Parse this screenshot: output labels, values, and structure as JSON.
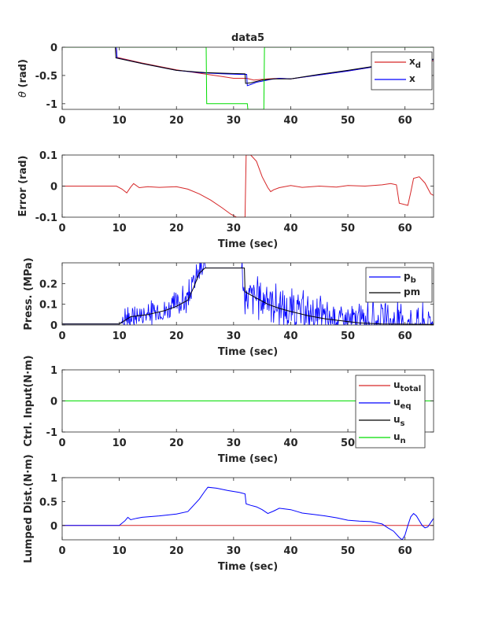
{
  "figure_title": "data5",
  "chart_data": [
    {
      "type": "line",
      "title": "data5",
      "xlabel": "",
      "ylabel": "θ (rad)",
      "xlim": [
        0,
        65
      ],
      "ylim": [
        -1.1,
        0
      ],
      "xticks": [
        "0",
        "10",
        "20",
        "30",
        "40",
        "50",
        "60"
      ],
      "yticks": [
        "0",
        "-0.5",
        "-1"
      ],
      "legend": {
        "placement": "top-right",
        "entries": [
          {
            "main": "x",
            "sub": "d",
            "color": "#d62728"
          },
          {
            "main": "x",
            "sub": "",
            "color": "#0000ff"
          }
        ]
      },
      "series": [
        {
          "name": "x_d",
          "color": "#d62728",
          "points": [
            [
              0,
              0
            ],
            [
              9.5,
              0
            ],
            [
              9.6,
              -0.18
            ],
            [
              14,
              -0.28
            ],
            [
              20,
              -0.4
            ],
            [
              24,
              -0.46
            ],
            [
              28,
              -0.52
            ],
            [
              30,
              -0.55
            ],
            [
              32.3,
              -0.55
            ],
            [
              33.5,
              -0.58
            ],
            [
              36,
              -0.56
            ],
            [
              38,
              -0.55
            ],
            [
              40,
              -0.56
            ],
            [
              45,
              -0.49
            ],
            [
              50,
              -0.42
            ],
            [
              55,
              -0.34
            ],
            [
              60,
              -0.27
            ],
            [
              65,
              -0.24
            ]
          ]
        },
        {
          "name": "x",
          "color": "#0000ff",
          "points": [
            [
              0,
              0
            ],
            [
              9.5,
              0
            ],
            [
              9.6,
              -0.19
            ],
            [
              14,
              -0.29
            ],
            [
              20,
              -0.41
            ],
            [
              24,
              -0.45
            ],
            [
              28,
              -0.47
            ],
            [
              31,
              -0.48
            ],
            [
              32.3,
              -0.48
            ],
            [
              32.4,
              -0.68
            ],
            [
              33,
              -0.66
            ],
            [
              34,
              -0.62
            ],
            [
              35,
              -0.6
            ],
            [
              36.5,
              -0.57
            ],
            [
              38,
              -0.55
            ],
            [
              40,
              -0.56
            ],
            [
              45,
              -0.49
            ],
            [
              50,
              -0.42
            ],
            [
              55,
              -0.34
            ],
            [
              60,
              -0.28
            ],
            [
              65,
              -0.22
            ]
          ]
        },
        {
          "name": "",
          "color": "#000000",
          "points": [
            [
              0,
              0
            ],
            [
              9.3,
              0
            ],
            [
              9.4,
              -0.19
            ],
            [
              14,
              -0.29
            ],
            [
              20,
              -0.41
            ],
            [
              25,
              -0.45
            ],
            [
              28,
              -0.46
            ],
            [
              32,
              -0.47
            ],
            [
              32.1,
              -0.64
            ],
            [
              33,
              -0.63
            ],
            [
              35,
              -0.58
            ],
            [
              37,
              -0.56
            ],
            [
              40,
              -0.56
            ],
            [
              45,
              -0.48
            ],
            [
              50,
              -0.41
            ],
            [
              55,
              -0.33
            ],
            [
              60,
              -0.27
            ],
            [
              65,
              -0.21
            ]
          ]
        },
        {
          "name": "",
          "color": "#00dd00",
          "points": [
            [
              0,
              0
            ],
            [
              25.2,
              0
            ],
            [
              25.3,
              -1.0
            ],
            [
              32.4,
              -1.0
            ],
            [
              32.5,
              -1.1
            ],
            [
              35.3,
              -1.1
            ],
            [
              35.4,
              0
            ],
            [
              65,
              0
            ]
          ]
        }
      ]
    },
    {
      "type": "line",
      "title": "",
      "xlabel": "Time (sec)",
      "ylabel": "Error (rad)",
      "xlim": [
        0,
        65
      ],
      "ylim": [
        -0.1,
        0.1
      ],
      "xticks": [
        "0",
        "10",
        "20",
        "30",
        "40",
        "50",
        "60"
      ],
      "yticks": [
        "0.1",
        "0",
        "-0.1"
      ],
      "series": [
        {
          "name": "",
          "color": "#d62728",
          "points": [
            [
              0,
              0
            ],
            [
              9.5,
              0
            ],
            [
              10.5,
              -0.01
            ],
            [
              11.3,
              -0.022
            ],
            [
              12,
              -0.003
            ],
            [
              12.5,
              0.008
            ],
            [
              13.5,
              -0.005
            ],
            [
              15,
              -0.002
            ],
            [
              17,
              -0.004
            ],
            [
              20,
              -0.002
            ],
            [
              22,
              -0.01
            ],
            [
              24,
              -0.025
            ],
            [
              26,
              -0.045
            ],
            [
              28,
              -0.07
            ],
            [
              29.5,
              -0.09
            ],
            [
              30.5,
              -0.1
            ],
            [
              31.5,
              -0.1
            ],
            [
              32,
              -0.1
            ],
            [
              32.2,
              0.1
            ],
            [
              33,
              0.1
            ],
            [
              34,
              0.08
            ],
            [
              35,
              0.03
            ],
            [
              36,
              -0.005
            ],
            [
              36.5,
              -0.018
            ],
            [
              37,
              -0.012
            ],
            [
              38,
              -0.005
            ],
            [
              40,
              0.002
            ],
            [
              42,
              -0.004
            ],
            [
              45,
              0
            ],
            [
              48,
              -0.003
            ],
            [
              50,
              0.002
            ],
            [
              53,
              0
            ],
            [
              56,
              0.004
            ],
            [
              57.5,
              0.008
            ],
            [
              58.5,
              0.004
            ],
            [
              59,
              -0.055
            ],
            [
              60.5,
              -0.062
            ],
            [
              61,
              -0.02
            ],
            [
              61.5,
              0.025
            ],
            [
              62.5,
              0.03
            ],
            [
              63.5,
              0.01
            ],
            [
              64.5,
              -0.025
            ],
            [
              65,
              -0.03
            ]
          ]
        }
      ]
    },
    {
      "type": "line",
      "title": "",
      "xlabel": "Time (sec)",
      "ylabel": "Press. (MPa)",
      "xlim": [
        0,
        65
      ],
      "ylim": [
        0,
        0.3
      ],
      "xticks": [
        "0",
        "10",
        "20",
        "30",
        "40",
        "50",
        "60"
      ],
      "yticks": [
        "0.2",
        "0.1",
        "0"
      ],
      "legend": {
        "placement": "top-right",
        "entries": [
          {
            "main": "p",
            "sub": "b",
            "color": "#0000ff"
          },
          {
            "main": "pm",
            "sub": "",
            "color": "#000000"
          }
        ]
      },
      "series": [
        {
          "name": "p_b",
          "color": "#0000ff",
          "noisy": true,
          "points": [
            [
              0,
              0.005
            ],
            [
              10,
              0.005
            ],
            [
              11,
              0.03
            ],
            [
              14,
              0.05
            ],
            [
              18,
              0.07
            ],
            [
              20,
              0.1
            ],
            [
              22,
              0.13
            ],
            [
              23,
              0.2
            ],
            [
              24,
              0.26
            ],
            [
              25,
              0.275
            ],
            [
              31.5,
              0.275
            ],
            [
              32,
              0.1
            ],
            [
              33,
              0.15
            ],
            [
              35,
              0.12
            ],
            [
              36,
              0.14
            ],
            [
              38,
              0.08
            ],
            [
              40,
              0.07
            ],
            [
              45,
              0.04
            ],
            [
              50,
              0.02
            ],
            [
              55,
              0.01
            ],
            [
              60,
              0.008
            ],
            [
              65,
              0.005
            ]
          ]
        },
        {
          "name": "pm",
          "color": "#000000",
          "points": [
            [
              0,
              0.005
            ],
            [
              10,
              0.005
            ],
            [
              12,
              0.04
            ],
            [
              15,
              0.05
            ],
            [
              18,
              0.07
            ],
            [
              20,
              0.09
            ],
            [
              22,
              0.12
            ],
            [
              23,
              0.18
            ],
            [
              24,
              0.25
            ],
            [
              25,
              0.275
            ],
            [
              31.9,
              0.275
            ],
            [
              32,
              0.16
            ],
            [
              34,
              0.13
            ],
            [
              36,
              0.1
            ],
            [
              38,
              0.08
            ],
            [
              40,
              0.065
            ],
            [
              43,
              0.045
            ],
            [
              46,
              0.03
            ],
            [
              49,
              0.02
            ],
            [
              52,
              0.01
            ],
            [
              56,
              0.005
            ],
            [
              65,
              0.003
            ]
          ]
        }
      ]
    },
    {
      "type": "line",
      "title": "",
      "xlabel": "Time (sec)",
      "ylabel": "Ctrl. Input(N·m)",
      "xlim": [
        0,
        65
      ],
      "ylim": [
        -1,
        1
      ],
      "xticks": [
        "0",
        "10",
        "20",
        "30",
        "40",
        "50",
        "60"
      ],
      "yticks": [
        "1",
        "0",
        "-1"
      ],
      "legend": {
        "placement": "top-right",
        "entries": [
          {
            "main": "u",
            "sub": "total",
            "color": "#d62728"
          },
          {
            "main": "u",
            "sub": "eq",
            "color": "#0000ff"
          },
          {
            "main": "u",
            "sub": "s",
            "color": "#000000"
          },
          {
            "main": "u",
            "sub": "n",
            "color": "#00dd00"
          }
        ]
      },
      "series": [
        {
          "name": "u_n",
          "color": "#00dd00",
          "points": [
            [
              0,
              0
            ],
            [
              65,
              0
            ]
          ]
        }
      ]
    },
    {
      "type": "line",
      "title": "",
      "xlabel": "Time (sec)",
      "ylabel": "Lumped Dist.(N·m)",
      "xlim": [
        0,
        65
      ],
      "ylim": [
        -0.3,
        1
      ],
      "xticks": [
        "0",
        "10",
        "20",
        "30",
        "40",
        "50",
        "60"
      ],
      "yticks": [
        "1",
        "0.5",
        "0"
      ],
      "series": [
        {
          "name": "",
          "color": "#d62728",
          "points": [
            [
              0,
              0
            ],
            [
              65,
              0
            ]
          ]
        },
        {
          "name": "",
          "color": "#0000ff",
          "points": [
            [
              0,
              0
            ],
            [
              10,
              0
            ],
            [
              11,
              0.1
            ],
            [
              11.5,
              0.17
            ],
            [
              12,
              0.12
            ],
            [
              13,
              0.15
            ],
            [
              14,
              0.17
            ],
            [
              17,
              0.2
            ],
            [
              20,
              0.24
            ],
            [
              22,
              0.29
            ],
            [
              24,
              0.55
            ],
            [
              25,
              0.72
            ],
            [
              25.5,
              0.8
            ],
            [
              27,
              0.78
            ],
            [
              29,
              0.73
            ],
            [
              31,
              0.69
            ],
            [
              32,
              0.66
            ],
            [
              32.2,
              0.45
            ],
            [
              33,
              0.42
            ],
            [
              34,
              0.39
            ],
            [
              35,
              0.33
            ],
            [
              36,
              0.25
            ],
            [
              37,
              0.3
            ],
            [
              38,
              0.36
            ],
            [
              40,
              0.33
            ],
            [
              42,
              0.26
            ],
            [
              44,
              0.23
            ],
            [
              46,
              0.2
            ],
            [
              48,
              0.16
            ],
            [
              50,
              0.11
            ],
            [
              52,
              0.09
            ],
            [
              54,
              0.08
            ],
            [
              56,
              0.03
            ],
            [
              57,
              -0.05
            ],
            [
              58,
              -0.12
            ],
            [
              59,
              -0.25
            ],
            [
              59.5,
              -0.3
            ],
            [
              60,
              -0.2
            ],
            [
              60.5,
              0.0
            ],
            [
              61,
              0.18
            ],
            [
              61.5,
              0.25
            ],
            [
              62,
              0.2
            ],
            [
              63,
              0.0
            ],
            [
              63.5,
              -0.05
            ],
            [
              64,
              -0.03
            ],
            [
              65,
              0.15
            ]
          ]
        }
      ]
    }
  ]
}
